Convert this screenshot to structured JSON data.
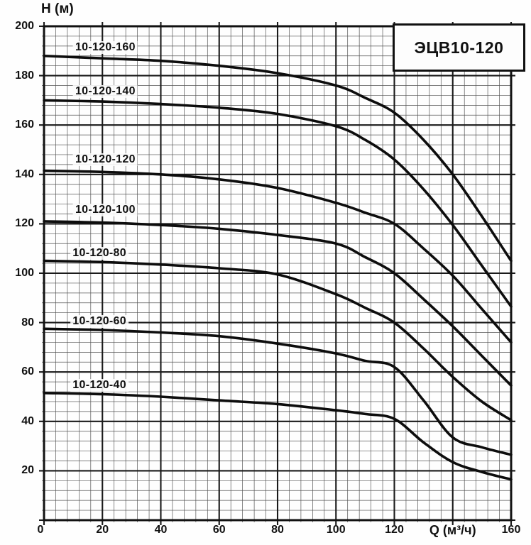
{
  "title_box": {
    "text": "ЭЦВ10-120"
  },
  "axes": {
    "y_title": "H (м)",
    "x_title": "Q (м³/ч)",
    "y_tick_labels": [
      20,
      40,
      60,
      80,
      100,
      120,
      140,
      160,
      180,
      200
    ],
    "x_tick_labels": [
      0,
      20,
      40,
      60,
      80,
      100,
      120,
      160
    ],
    "x_title_at": 140
  },
  "chart_data": {
    "type": "line",
    "title": "ЭЦВ10-120",
    "xlabel": "Q (м³/ч)",
    "ylabel": "H (м)",
    "xlim": [
      0,
      160
    ],
    "ylim": [
      0,
      200
    ],
    "x_major_step": 20,
    "y_major_step": 20,
    "x_minor_step": 4,
    "y_minor_step": 4,
    "grid": "major+minor",
    "legend_position": "labels above each curve at left",
    "x": [
      0,
      20,
      40,
      60,
      80,
      100,
      110,
      120,
      130,
      140,
      150,
      160
    ],
    "series": [
      {
        "name": "10-120-160",
        "values": [
          188,
          187,
          186,
          184,
          181,
          176,
          171,
          165,
          154,
          140,
          123,
          105
        ],
        "label_q": 21,
        "label_h": 191.5
      },
      {
        "name": "10-120-140",
        "values": [
          170,
          169.5,
          168.5,
          167,
          164.5,
          159.5,
          154,
          146,
          134,
          119.5,
          103,
          86.5
        ],
        "label_q": 21,
        "label_h": 173.5
      },
      {
        "name": "10-120-120",
        "values": [
          141.5,
          141,
          140,
          138,
          134.5,
          128.5,
          124.5,
          120,
          110,
          99,
          85.5,
          72
        ],
        "label_q": 21,
        "label_h": 146
      },
      {
        "name": "10-120-100",
        "values": [
          121,
          120.5,
          119.5,
          118,
          115.5,
          112,
          106.5,
          100,
          89.5,
          78.5,
          66.5,
          54.5
        ],
        "label_q": 21,
        "label_h": 125.5
      },
      {
        "name": "10-120-80",
        "values": [
          105,
          104.5,
          103.5,
          102,
          99.5,
          91.5,
          86,
          80,
          69.5,
          58,
          48,
          40.5
        ],
        "label_q": 19,
        "label_h": 108
      },
      {
        "name": "10-120-60",
        "values": [
          77.5,
          77,
          76,
          74.5,
          71.5,
          67.5,
          64.5,
          62,
          48.5,
          33.5,
          29.5,
          26.5
        ],
        "label_q": 19,
        "label_h": 80.5
      },
      {
        "name": "10-120-40",
        "values": [
          51.5,
          51,
          50,
          48.5,
          47,
          44.5,
          43,
          41,
          31.5,
          23.5,
          19.5,
          16.5
        ],
        "label_q": 19,
        "label_h": 54.5
      }
    ]
  },
  "colors": {
    "curve": "#0d0d0d",
    "major_grid": "#1a1a1a",
    "minor_grid": "#555555",
    "frame": "#111111",
    "background": "#fefefe"
  }
}
